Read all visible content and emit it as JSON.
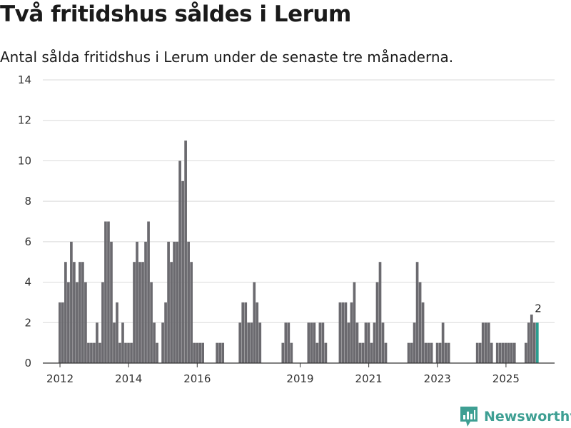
{
  "header": {
    "title": "Två fritidshus såldes i Lerum",
    "subtitle": "Antal sålda fritidshus i Lerum under de senaste tre månaderna."
  },
  "brand": {
    "name": "Newsworthy",
    "icon": "newsworthy-logo-icon"
  },
  "colors": {
    "bar": "#6b6a6f",
    "highlight": "#2a9d8f",
    "grid": "#d9d9d9",
    "axis": "#333333",
    "brand": "#3e9f93"
  },
  "chart_data": {
    "type": "bar",
    "title": "",
    "xlabel": "",
    "ylabel": "",
    "ylim": [
      0,
      14
    ],
    "yticks": [
      0,
      2,
      4,
      6,
      8,
      10,
      12,
      14
    ],
    "xlim": [
      "2011-07",
      "2026-06"
    ],
    "xticks": [
      {
        "label": "2012",
        "month": "2012-01"
      },
      {
        "label": "2014",
        "month": "2014-01"
      },
      {
        "label": "2016",
        "month": "2016-01"
      },
      {
        "label": "2019",
        "month": "2019-01"
      },
      {
        "label": "2021",
        "month": "2021-01"
      },
      {
        "label": "2023",
        "month": "2023-01"
      },
      {
        "label": "2025",
        "month": "2025-01"
      }
    ],
    "grid": true,
    "highlight": {
      "month": "2025-12",
      "label": "2"
    },
    "series": [
      {
        "points": [
          {
            "x": "2012-01",
            "y": 3
          },
          {
            "x": "2012-02",
            "y": 3
          },
          {
            "x": "2012-03",
            "y": 5
          },
          {
            "x": "2012-04",
            "y": 4
          },
          {
            "x": "2012-05",
            "y": 6
          },
          {
            "x": "2012-06",
            "y": 5
          },
          {
            "x": "2012-07",
            "y": 4
          },
          {
            "x": "2012-08",
            "y": 5
          },
          {
            "x": "2012-09",
            "y": 5
          },
          {
            "x": "2012-10",
            "y": 4
          },
          {
            "x": "2012-11",
            "y": 1
          },
          {
            "x": "2012-12",
            "y": 1
          },
          {
            "x": "2013-01",
            "y": 1
          },
          {
            "x": "2013-02",
            "y": 2
          },
          {
            "x": "2013-03",
            "y": 1
          },
          {
            "x": "2013-04",
            "y": 4
          },
          {
            "x": "2013-05",
            "y": 7
          },
          {
            "x": "2013-06",
            "y": 7
          },
          {
            "x": "2013-07",
            "y": 6
          },
          {
            "x": "2013-08",
            "y": 2
          },
          {
            "x": "2013-09",
            "y": 3
          },
          {
            "x": "2013-10",
            "y": 1
          },
          {
            "x": "2013-11",
            "y": 2
          },
          {
            "x": "2013-12",
            "y": 1
          },
          {
            "x": "2014-01",
            "y": 1
          },
          {
            "x": "2014-02",
            "y": 1
          },
          {
            "x": "2014-03",
            "y": 5
          },
          {
            "x": "2014-04",
            "y": 6
          },
          {
            "x": "2014-05",
            "y": 5
          },
          {
            "x": "2014-06",
            "y": 5
          },
          {
            "x": "2014-07",
            "y": 6
          },
          {
            "x": "2014-08",
            "y": 7
          },
          {
            "x": "2014-09",
            "y": 4
          },
          {
            "x": "2014-10",
            "y": 2
          },
          {
            "x": "2014-11",
            "y": 1
          },
          {
            "x": "2015-01",
            "y": 2
          },
          {
            "x": "2015-02",
            "y": 3
          },
          {
            "x": "2015-03",
            "y": 6
          },
          {
            "x": "2015-04",
            "y": 5
          },
          {
            "x": "2015-05",
            "y": 6
          },
          {
            "x": "2015-06",
            "y": 6
          },
          {
            "x": "2015-07",
            "y": 10
          },
          {
            "x": "2015-08",
            "y": 9
          },
          {
            "x": "2015-09",
            "y": 11
          },
          {
            "x": "2015-10",
            "y": 6
          },
          {
            "x": "2015-11",
            "y": 5
          },
          {
            "x": "2015-12",
            "y": 1
          },
          {
            "x": "2016-01",
            "y": 1
          },
          {
            "x": "2016-02",
            "y": 1
          },
          {
            "x": "2016-03",
            "y": 1
          },
          {
            "x": "2016-08",
            "y": 1
          },
          {
            "x": "2016-09",
            "y": 1
          },
          {
            "x": "2016-10",
            "y": 1
          },
          {
            "x": "2017-04",
            "y": 2
          },
          {
            "x": "2017-05",
            "y": 3
          },
          {
            "x": "2017-06",
            "y": 3
          },
          {
            "x": "2017-07",
            "y": 2
          },
          {
            "x": "2017-08",
            "y": 2
          },
          {
            "x": "2017-09",
            "y": 4
          },
          {
            "x": "2017-10",
            "y": 3
          },
          {
            "x": "2017-11",
            "y": 2
          },
          {
            "x": "2018-07",
            "y": 1
          },
          {
            "x": "2018-08",
            "y": 2
          },
          {
            "x": "2018-09",
            "y": 2
          },
          {
            "x": "2018-10",
            "y": 1
          },
          {
            "x": "2019-04",
            "y": 2
          },
          {
            "x": "2019-05",
            "y": 2
          },
          {
            "x": "2019-06",
            "y": 2
          },
          {
            "x": "2019-07",
            "y": 1
          },
          {
            "x": "2019-08",
            "y": 2
          },
          {
            "x": "2019-09",
            "y": 2
          },
          {
            "x": "2019-10",
            "y": 1
          },
          {
            "x": "2020-03",
            "y": 3
          },
          {
            "x": "2020-04",
            "y": 3
          },
          {
            "x": "2020-05",
            "y": 3
          },
          {
            "x": "2020-06",
            "y": 2
          },
          {
            "x": "2020-07",
            "y": 3
          },
          {
            "x": "2020-08",
            "y": 4
          },
          {
            "x": "2020-09",
            "y": 2
          },
          {
            "x": "2020-10",
            "y": 1
          },
          {
            "x": "2020-11",
            "y": 1
          },
          {
            "x": "2020-12",
            "y": 2
          },
          {
            "x": "2021-01",
            "y": 2
          },
          {
            "x": "2021-02",
            "y": 1
          },
          {
            "x": "2021-03",
            "y": 2
          },
          {
            "x": "2021-04",
            "y": 4
          },
          {
            "x": "2021-05",
            "y": 5
          },
          {
            "x": "2021-06",
            "y": 2
          },
          {
            "x": "2021-07",
            "y": 1
          },
          {
            "x": "2022-03",
            "y": 1
          },
          {
            "x": "2022-04",
            "y": 1
          },
          {
            "x": "2022-05",
            "y": 2
          },
          {
            "x": "2022-06",
            "y": 5
          },
          {
            "x": "2022-07",
            "y": 4
          },
          {
            "x": "2022-08",
            "y": 3
          },
          {
            "x": "2022-09",
            "y": 1
          },
          {
            "x": "2022-10",
            "y": 1
          },
          {
            "x": "2022-11",
            "y": 1
          },
          {
            "x": "2023-01",
            "y": 1
          },
          {
            "x": "2023-02",
            "y": 1
          },
          {
            "x": "2023-03",
            "y": 2
          },
          {
            "x": "2023-04",
            "y": 1
          },
          {
            "x": "2023-05",
            "y": 1
          },
          {
            "x": "2024-03",
            "y": 1
          },
          {
            "x": "2024-04",
            "y": 1
          },
          {
            "x": "2024-05",
            "y": 2
          },
          {
            "x": "2024-06",
            "y": 2
          },
          {
            "x": "2024-07",
            "y": 2
          },
          {
            "x": "2024-08",
            "y": 1
          },
          {
            "x": "2024-10",
            "y": 1
          },
          {
            "x": "2024-11",
            "y": 1
          },
          {
            "x": "2024-12",
            "y": 1
          },
          {
            "x": "2025-01",
            "y": 1
          },
          {
            "x": "2025-02",
            "y": 1
          },
          {
            "x": "2025-03",
            "y": 1
          },
          {
            "x": "2025-04",
            "y": 1
          },
          {
            "x": "2025-08",
            "y": 1
          },
          {
            "x": "2025-09",
            "y": 2
          },
          {
            "x": "2025-10",
            "y": 2.4
          },
          {
            "x": "2025-11",
            "y": 2
          },
          {
            "x": "2025-12",
            "y": 2
          }
        ]
      }
    ]
  }
}
